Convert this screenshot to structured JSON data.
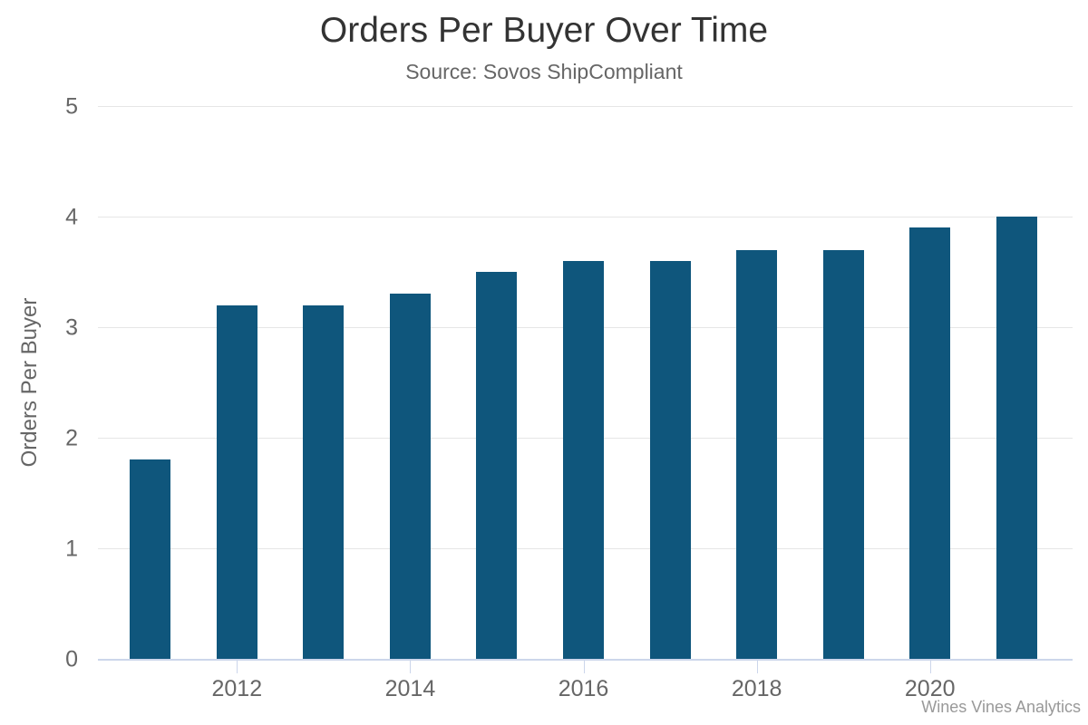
{
  "chart_data": {
    "type": "bar",
    "title": "Orders Per Buyer Over Time",
    "subtitle": "Source: Sovos ShipCompliant",
    "ylabel": "Orders Per Buyer",
    "xlabel": "",
    "credits": "Wines Vines Analytics",
    "categories": [
      "2011",
      "2012",
      "2013",
      "2014",
      "2015",
      "2016",
      "2017",
      "2018",
      "2019",
      "2020",
      "2021"
    ],
    "values": [
      1.8,
      3.2,
      3.2,
      3.3,
      3.5,
      3.6,
      3.6,
      3.7,
      3.7,
      3.9,
      4.0
    ],
    "series_name": "Orders Per Buyer",
    "ylim": [
      0,
      5
    ],
    "yticks": [
      0,
      1,
      2,
      3,
      4,
      5
    ],
    "xtick_labels": [
      "2012",
      "2014",
      "2016",
      "2018",
      "2020"
    ],
    "grid": "horizontal",
    "legend": "none",
    "colors": {
      "bar": "#0F567C",
      "gridline": "#E6E6E6",
      "axis_line": "#CCD6EB",
      "title_text": "#333333",
      "subtitle_text": "#666666",
      "label_text": "#666666",
      "credits_text": "#999999",
      "background": "#FFFFFF"
    }
  }
}
